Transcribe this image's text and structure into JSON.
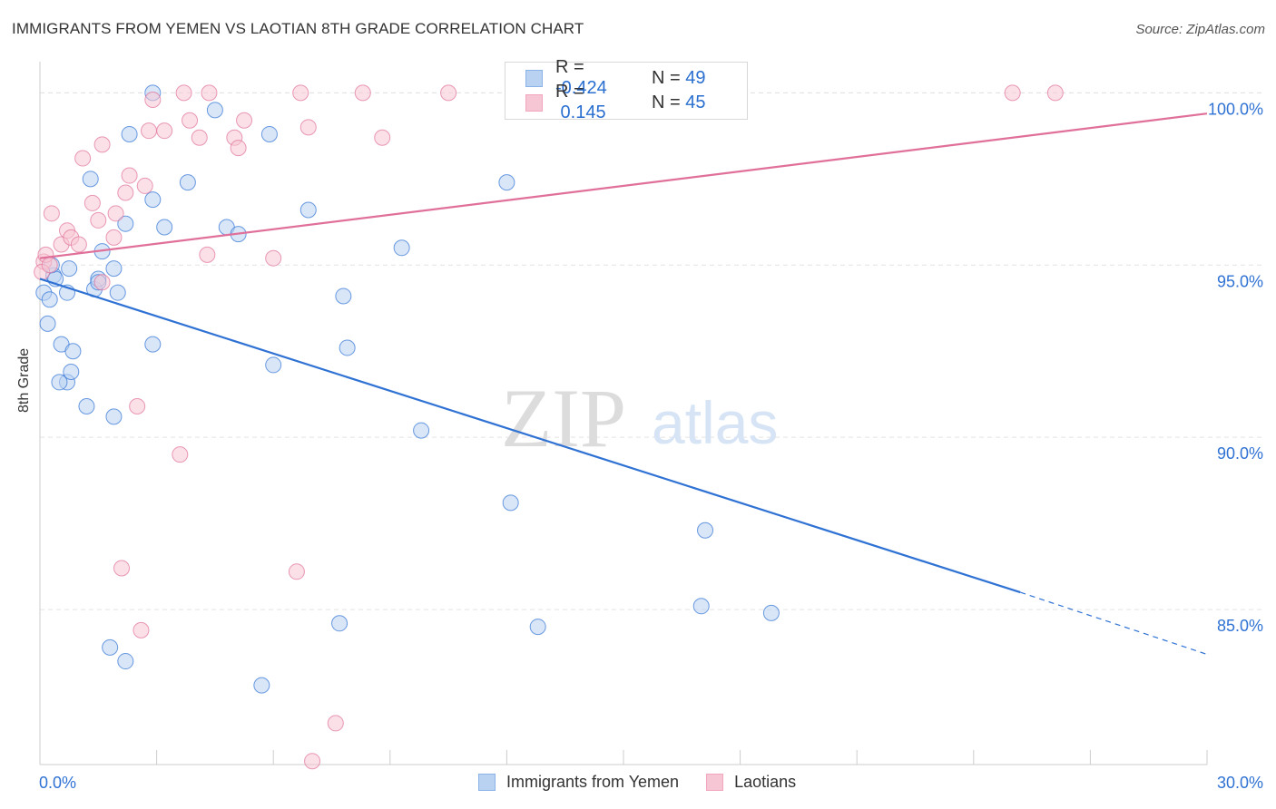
{
  "header": {
    "title": "IMMIGRANTS FROM YEMEN VS LAOTIAN 8TH GRADE CORRELATION CHART",
    "source": "Source: ZipAtlas.com"
  },
  "watermark": {
    "zip": "ZIP",
    "atlas": "atlas"
  },
  "legend_box": {
    "rows": [
      {
        "r_label": "R = ",
        "r_value": "-0.424",
        "n_label": "N = ",
        "n_value": "49",
        "color": "#8ab4e8"
      },
      {
        "r_label": "R = ",
        "r_value": " 0.145",
        "n_label": "N = ",
        "n_value": "45",
        "color": "#f2a6bd"
      }
    ]
  },
  "chart_data": {
    "type": "scatter",
    "title": "IMMIGRANTS FROM YEMEN VS LAOTIAN 8TH GRADE CORRELATION CHART",
    "xlabel": "",
    "ylabel": "8th Grade",
    "xlim": [
      0,
      30
    ],
    "ylim": [
      80.5,
      100.8
    ],
    "x_tick_labels": [
      "0.0%",
      "30.0%"
    ],
    "y_ticks": [
      85,
      90,
      95,
      100
    ],
    "y_tick_labels": [
      "85.0%",
      "90.0%",
      "95.0%",
      "100.0%"
    ],
    "grid": true,
    "legend_position": "bottom-center",
    "series": [
      {
        "name": "Immigrants from Yemen",
        "color": "#2f72d4",
        "fill": "#b9d2f2",
        "r": -0.424,
        "n": 49,
        "trend": {
          "x": [
            0,
            25.2
          ],
          "y": [
            94.6,
            85.5
          ],
          "dashed_to": [
            30,
            83.7
          ]
        },
        "points": [
          [
            0.1,
            94.2
          ],
          [
            0.25,
            94.0
          ],
          [
            0.2,
            93.3
          ],
          [
            0.35,
            94.7
          ],
          [
            0.75,
            94.9
          ],
          [
            0.55,
            92.7
          ],
          [
            0.85,
            92.5
          ],
          [
            0.7,
            91.6
          ],
          [
            0.8,
            91.9
          ],
          [
            0.5,
            91.6
          ],
          [
            1.2,
            90.9
          ],
          [
            0.7,
            94.2
          ],
          [
            1.3,
            97.5
          ],
          [
            1.4,
            94.3
          ],
          [
            1.6,
            95.4
          ],
          [
            1.5,
            94.6
          ],
          [
            1.9,
            94.9
          ],
          [
            2.0,
            94.2
          ],
          [
            1.9,
            90.6
          ],
          [
            2.2,
            96.2
          ],
          [
            2.3,
            98.8
          ],
          [
            2.9,
            100.0
          ],
          [
            2.9,
            96.9
          ],
          [
            3.2,
            96.1
          ],
          [
            2.9,
            92.7
          ],
          [
            3.8,
            97.4
          ],
          [
            4.5,
            99.5
          ],
          [
            4.8,
            96.1
          ],
          [
            5.1,
            95.9
          ],
          [
            5.9,
            98.8
          ],
          [
            6.9,
            96.6
          ],
          [
            7.8,
            94.1
          ],
          [
            7.9,
            92.6
          ],
          [
            6.0,
            92.1
          ],
          [
            9.3,
            95.5
          ],
          [
            9.8,
            90.2
          ],
          [
            12.0,
            97.4
          ],
          [
            12.1,
            88.1
          ],
          [
            17.1,
            87.3
          ],
          [
            1.8,
            83.9
          ],
          [
            2.2,
            83.5
          ],
          [
            5.7,
            82.8
          ],
          [
            7.7,
            84.6
          ],
          [
            12.8,
            84.5
          ],
          [
            17.0,
            85.1
          ],
          [
            18.8,
            84.9
          ],
          [
            1.5,
            94.5
          ],
          [
            0.4,
            94.6
          ],
          [
            0.3,
            95.0
          ]
        ]
      },
      {
        "name": "Laotians",
        "color": "#e07099",
        "fill": "#f7c6d4",
        "r": 0.145,
        "n": 45,
        "trend": {
          "x": [
            0,
            30
          ],
          "y": [
            95.2,
            99.4
          ]
        },
        "points": [
          [
            0.1,
            95.1
          ],
          [
            0.3,
            96.5
          ],
          [
            0.55,
            95.6
          ],
          [
            0.7,
            96.0
          ],
          [
            0.8,
            95.8
          ],
          [
            1.0,
            95.6
          ],
          [
            1.1,
            98.1
          ],
          [
            1.35,
            96.8
          ],
          [
            1.5,
            96.3
          ],
          [
            1.6,
            98.5
          ],
          [
            1.9,
            95.8
          ],
          [
            1.95,
            96.5
          ],
          [
            2.2,
            97.1
          ],
          [
            2.3,
            97.6
          ],
          [
            2.7,
            97.3
          ],
          [
            2.8,
            98.9
          ],
          [
            2.9,
            99.8
          ],
          [
            3.2,
            98.9
          ],
          [
            3.7,
            100.0
          ],
          [
            3.85,
            99.2
          ],
          [
            4.1,
            98.7
          ],
          [
            4.35,
            100.0
          ],
          [
            4.3,
            95.3
          ],
          [
            5.0,
            98.7
          ],
          [
            5.1,
            98.4
          ],
          [
            5.25,
            99.2
          ],
          [
            6.0,
            95.2
          ],
          [
            6.7,
            100.0
          ],
          [
            6.9,
            99.0
          ],
          [
            8.3,
            100.0
          ],
          [
            8.8,
            98.7
          ],
          [
            10.5,
            100.0
          ],
          [
            25.0,
            100.0
          ],
          [
            26.1,
            100.0
          ],
          [
            1.6,
            94.5
          ],
          [
            2.5,
            90.9
          ],
          [
            3.6,
            89.5
          ],
          [
            2.1,
            86.2
          ],
          [
            6.6,
            86.1
          ],
          [
            2.6,
            84.4
          ],
          [
            7.6,
            81.7
          ],
          [
            7.0,
            80.6
          ],
          [
            0.05,
            94.8
          ],
          [
            0.15,
            95.3
          ],
          [
            0.25,
            95.0
          ]
        ]
      }
    ]
  }
}
